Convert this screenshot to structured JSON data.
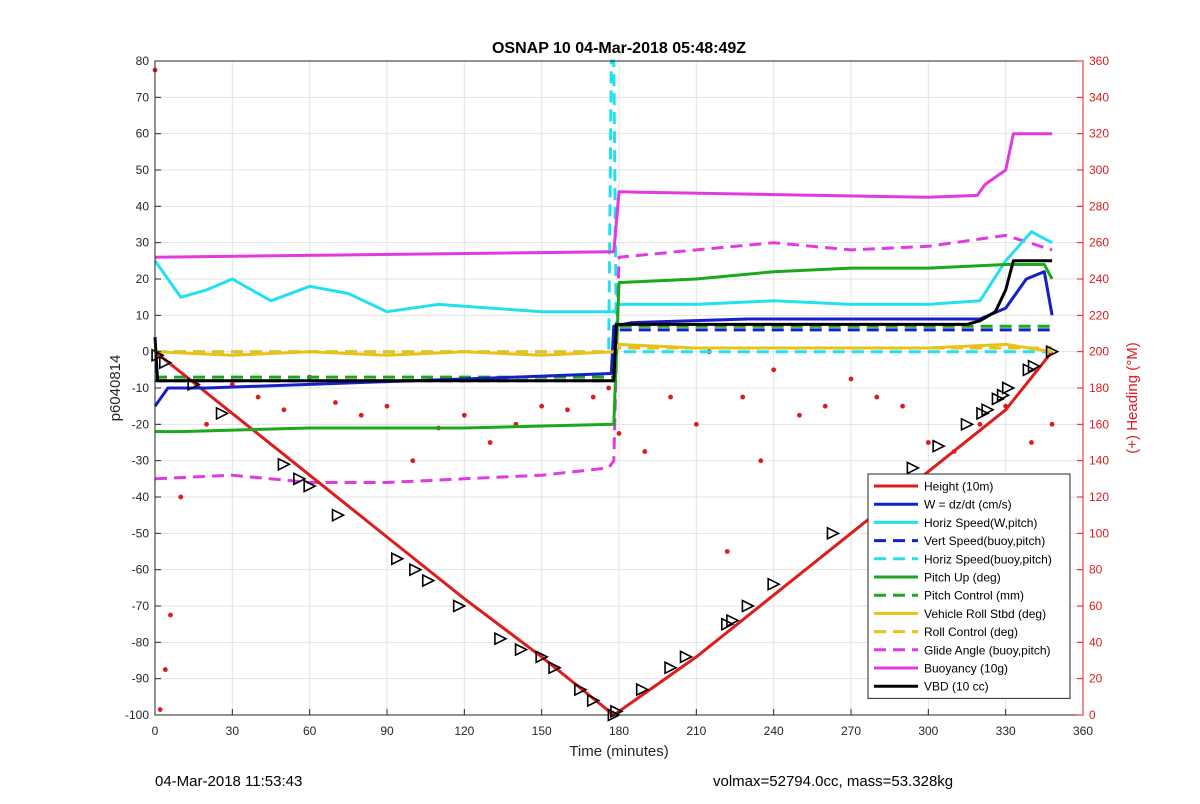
{
  "chart_data": {
    "type": "line",
    "title": "OSNAP 10 04-Mar-2018 05:48:49Z",
    "xlabel": "Time (minutes)",
    "ylabel": "p6040814",
    "y2label": "(+) Heading (°M)",
    "xlim": [
      0,
      360
    ],
    "ylim": [
      -100,
      80
    ],
    "y2lim": [
      0,
      360
    ],
    "x_ticks": [
      "0",
      "30",
      "60",
      "90",
      "120",
      "150",
      "180",
      "210",
      "240",
      "270",
      "300",
      "330",
      "360"
    ],
    "y_ticks": [
      "80",
      "70",
      "60",
      "50",
      "40",
      "30",
      "20",
      "10",
      "0",
      "-10",
      "-20",
      "-30",
      "-40",
      "-50",
      "-60",
      "-70",
      "-80",
      "-90",
      "-100"
    ],
    "y2_ticks": [
      "360",
      "340",
      "320",
      "300",
      "280",
      "260",
      "240",
      "220",
      "200",
      "180",
      "160",
      "140",
      "120",
      "100",
      "80",
      "60",
      "40",
      "20",
      "0"
    ],
    "grid": true,
    "legend_position": "bottom-right",
    "series": [
      {
        "name": "Height (10m)",
        "color": "#dd1c1c",
        "style": "solid",
        "x": [
          0,
          30,
          60,
          90,
          120,
          150,
          178,
          180,
          210,
          240,
          270,
          300,
          330,
          348
        ],
        "y": [
          0,
          -17,
          -34,
          -51,
          -68,
          -84,
          -100,
          -99,
          -84,
          -67,
          -50,
          -33,
          -16,
          0
        ]
      },
      {
        "name": "W = dz/dt (cm/s)",
        "color": "#1520c8",
        "style": "solid",
        "x": [
          0,
          5,
          20,
          60,
          100,
          140,
          177,
          178,
          185,
          230,
          300,
          320,
          330,
          338,
          345,
          348
        ],
        "y": [
          -15,
          -10,
          -10,
          -9,
          -8,
          -7,
          -6,
          7,
          8,
          9,
          9,
          9,
          12,
          20,
          22,
          10
        ]
      },
      {
        "name": "Horiz Speed(W,pitch)",
        "color": "#22e0f0",
        "style": "solid",
        "x": [
          0,
          10,
          20,
          30,
          45,
          60,
          75,
          90,
          110,
          130,
          150,
          178,
          180,
          210,
          240,
          270,
          300,
          320,
          330,
          340,
          348
        ],
        "y": [
          25,
          15,
          17,
          20,
          14,
          18,
          16,
          11,
          13,
          12,
          11,
          11,
          13,
          13,
          14,
          13,
          13,
          14,
          25,
          33,
          30
        ]
      },
      {
        "name": "Vert Speed(buoy,pitch)",
        "color": "#1520c8",
        "style": "dashed",
        "x": [
          0,
          178,
          179,
          348
        ],
        "y": [
          -8,
          -8,
          6,
          6
        ]
      },
      {
        "name": "Horiz Speed(buoy,pitch)",
        "color": "#22e0f0",
        "style": "dashed",
        "x": [
          0,
          176,
          177,
          178,
          179,
          348
        ],
        "y": [
          0,
          0,
          80,
          80,
          0,
          0
        ]
      },
      {
        "name": "Pitch Up (deg)",
        "color": "#1ca81c",
        "style": "solid",
        "x": [
          0,
          10,
          60,
          120,
          178,
          180,
          210,
          240,
          270,
          300,
          330,
          345,
          348
        ],
        "y": [
          -22,
          -22,
          -21,
          -21,
          -20,
          19,
          20,
          22,
          23,
          23,
          24,
          24,
          20
        ]
      },
      {
        "name": "Pitch Control (mm)",
        "color": "#1ca81c",
        "style": "dashed",
        "x": [
          0,
          178,
          179,
          348
        ],
        "y": [
          -7,
          -7,
          7,
          7
        ]
      },
      {
        "name": "Vehicle Roll Stbd (deg)",
        "color": "#e6c21a",
        "style": "solid",
        "x": [
          0,
          30,
          60,
          90,
          120,
          150,
          178,
          180,
          210,
          240,
          270,
          300,
          330,
          348
        ],
        "y": [
          0,
          -1,
          0,
          -1,
          0,
          -1,
          0,
          2,
          1,
          1,
          1,
          1,
          2,
          0
        ]
      },
      {
        "name": "Roll Control (deg)",
        "color": "#e6c21a",
        "style": "dashed",
        "x": [
          0,
          178,
          179,
          348
        ],
        "y": [
          0,
          0,
          1,
          1
        ]
      },
      {
        "name": "Glide Angle (buoy,pitch)",
        "color": "#e23ae2",
        "style": "dashed",
        "x": [
          0,
          30,
          60,
          90,
          120,
          150,
          176,
          178,
          180,
          210,
          240,
          270,
          300,
          330,
          348
        ],
        "y": [
          -35,
          -34,
          -36,
          -36,
          -35,
          -34,
          -32,
          -30,
          26,
          28,
          30,
          28,
          29,
          32,
          28
        ]
      },
      {
        "name": "Buoyancy (10g)",
        "color": "#e23ae2",
        "style": "solid",
        "x": [
          0,
          177,
          178,
          180,
          300,
          319,
          322,
          330,
          333,
          348
        ],
        "y": [
          26,
          27.5,
          27.5,
          44,
          42.5,
          43,
          46,
          50,
          60,
          60
        ]
      },
      {
        "name": "VBD (10 cc)",
        "color": "#000000",
        "style": "solid",
        "x": [
          0,
          1,
          2,
          178,
          179,
          315,
          320,
          326,
          330,
          333,
          348
        ],
        "y": [
          4,
          -8,
          -8,
          -8,
          7.5,
          7.5,
          8.5,
          11,
          17,
          25,
          25
        ]
      }
    ],
    "heading_series": {
      "name": "Heading",
      "color": "#dd1c1c",
      "style": "dotted",
      "axis": "right",
      "x": [
        0,
        2,
        4,
        6,
        10,
        20,
        30,
        40,
        50,
        60,
        70,
        80,
        90,
        100,
        110,
        120,
        130,
        140,
        150,
        160,
        170,
        176,
        180,
        190,
        200,
        210,
        215,
        222,
        228,
        235,
        240,
        250,
        260,
        270,
        280,
        290,
        300,
        310,
        320,
        330,
        340,
        348
      ],
      "y": [
        355,
        3,
        25,
        55,
        120,
        160,
        182,
        175,
        168,
        186,
        172,
        165,
        170,
        140,
        158,
        165,
        150,
        160,
        170,
        168,
        175,
        180,
        155,
        145,
        175,
        160,
        200,
        90,
        175,
        140,
        190,
        165,
        170,
        185,
        175,
        170,
        150,
        145,
        160,
        170,
        150,
        160
      ]
    },
    "marker_series": {
      "name": "markers",
      "color": "#000000",
      "marker": "triangle",
      "x": [
        1,
        4,
        15,
        26,
        50,
        56,
        60,
        71,
        94,
        101,
        106,
        118,
        134,
        142,
        150,
        155,
        165,
        170,
        178,
        179,
        189,
        200,
        206,
        222,
        224,
        230,
        240,
        263,
        285,
        294,
        304,
        315,
        321,
        323,
        327,
        329,
        331,
        339,
        341,
        348
      ],
      "y": [
        -1,
        -3,
        -9,
        -17,
        -31,
        -35,
        -37,
        -45,
        -57,
        -60,
        -63,
        -70,
        -79,
        -82,
        -84,
        -87,
        -93,
        -96,
        -100,
        -99,
        -93,
        -87,
        -84,
        -75,
        -74,
        -70,
        -64,
        -50,
        -37,
        -32,
        -26,
        -20,
        -17,
        -16,
        -13,
        -12,
        -10,
        -5,
        -4,
        0
      ]
    }
  },
  "footer": {
    "left": "04-Mar-2018 11:53:43",
    "right": "volmax=52794.0cc, mass=53.328kg"
  }
}
